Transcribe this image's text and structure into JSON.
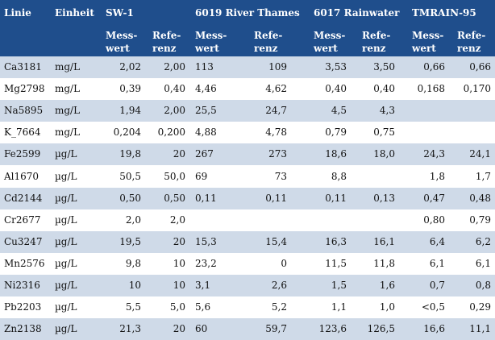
{
  "header": {
    "linie": "Linie",
    "einheit": "Einheit",
    "groups": [
      "SW-1",
      "6019 River Thames",
      "6017 Rainwater",
      "TMRAIN-95"
    ],
    "messwert": "Mess-\nwert",
    "referenz": "Refe-\nrenz"
  },
  "rows": [
    {
      "linie": "Ca3181",
      "einheit": "mg/L",
      "v": [
        "2,02",
        "2,00",
        "113",
        "109",
        "3,53",
        "3,50",
        "0,66",
        "0,66"
      ]
    },
    {
      "linie": "Mg2798",
      "einheit": "mg/L",
      "v": [
        "0,39",
        "0,40",
        "4,46",
        "4,62",
        "0,40",
        "0,40",
        "0,168",
        "0,170"
      ]
    },
    {
      "linie": "Na5895",
      "einheit": "mg/L",
      "v": [
        "1,94",
        "2,00",
        "25,5",
        "24,7",
        "4,5",
        "4,3",
        "",
        ""
      ]
    },
    {
      "linie": "K_7664",
      "einheit": "mg/L",
      "v": [
        "0,204",
        "0,200",
        "4,88",
        "4,78",
        "0,79",
        "0,75",
        "",
        ""
      ]
    },
    {
      "linie": "Fe2599",
      "einheit": "µg/L",
      "v": [
        "19,8",
        "20",
        "267",
        "273",
        "18,6",
        "18,0",
        "24,3",
        "24,1"
      ]
    },
    {
      "linie": "Al1670",
      "einheit": "µg/L",
      "v": [
        "50,5",
        "50,0",
        "69",
        "73",
        "8,8",
        "",
        "1,8",
        "1,7"
      ]
    },
    {
      "linie": "Cd2144",
      "einheit": "µg/L",
      "v": [
        "0,50",
        "0,50",
        "0,11",
        "0,11",
        "0,11",
        "0,13",
        "0,47",
        "0,48"
      ]
    },
    {
      "linie": "Cr2677",
      "einheit": "µg/L",
      "v": [
        "2,0",
        "2,0",
        "",
        "",
        "",
        "",
        "0,80",
        "0,79"
      ]
    },
    {
      "linie": "Cu3247",
      "einheit": "µg/L",
      "v": [
        "19,5",
        "20",
        "15,3",
        "15,4",
        "16,3",
        "16,1",
        "6,4",
        "6,2"
      ]
    },
    {
      "linie": "Mn2576",
      "einheit": "µg/L",
      "v": [
        "9,8",
        "10",
        "23,2",
        "0",
        "11,5",
        "11,8",
        "6,1",
        "6,1"
      ]
    },
    {
      "linie": "Ni2316",
      "einheit": "µg/L",
      "v": [
        "10",
        "10",
        "3,1",
        "2,6",
        "1,5",
        "1,6",
        "0,7",
        "0,8"
      ]
    },
    {
      "linie": "Pb2203",
      "einheit": "µg/L",
      "v": [
        "5,5",
        "5,0",
        "5,6",
        "5,2",
        "1,1",
        "1,0",
        "<0,5",
        "0,29"
      ]
    },
    {
      "linie": "Zn2138",
      "einheit": "µg/L",
      "v": [
        "21,3",
        "20",
        "60",
        "59,7",
        "123,6",
        "126,5",
        "16,6",
        "11,1"
      ]
    }
  ]
}
